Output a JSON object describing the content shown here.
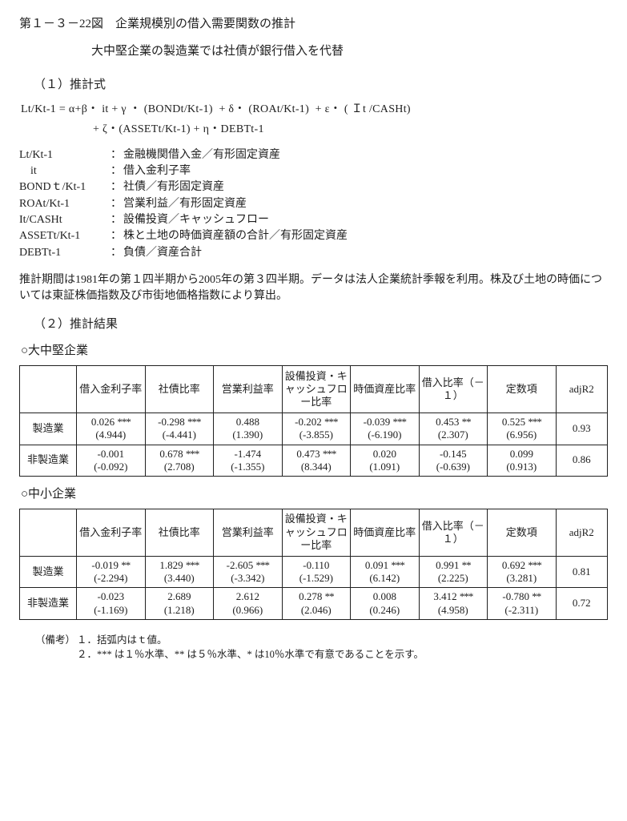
{
  "title": "第１－３－22図　企業規模別の借入需要関数の推計",
  "subtitle": "大中堅企業の製造業では社債が銀行借入を代替",
  "section1": {
    "heading": "（１）推計式",
    "eq_line1": "Lt/Kt-1 = α+β・ it + γ ・ (BONDt/Kt-1)  + δ・ (ROAt/Kt-1)  + ε・ ( Ｉt /CASHt)",
    "eq_line2": "+ ζ・(ASSETt/Kt-1) + η・DEBTt-1",
    "defs": [
      {
        "term": "Lt/Kt-1",
        "desc": "金融機関借入金／有形固定資産"
      },
      {
        "term": "    it",
        "desc": "借入金利子率"
      },
      {
        "term": "BONDｔ/Kt-1",
        "desc": "社債／有形固定資産"
      },
      {
        "term": "ROAt/Kt-1",
        "desc": "営業利益／有形固定資産"
      },
      {
        "term": "It/CASHt",
        "desc": "設備投資／キャッシュフロー"
      },
      {
        "term": "ASSETt/Kt-1",
        "desc": "株と土地の時価資産額の合計／有形固定資産"
      },
      {
        "term": "DEBTt-1",
        "desc": "負債／資産合計"
      }
    ],
    "period_note": "推計期間は1981年の第１四半期から2005年の第３四半期。データは法人企業統計季報を利用。株及び土地の時価については東証株価指数及び市街地価格指数により算出。"
  },
  "section2": {
    "heading": "（２）推計結果",
    "columns": [
      "",
      "借入金利子率",
      "社債比率",
      "営業利益率",
      "設備投資・キャッシュフロー比率",
      "時価資産比率",
      "借入比率（－１）",
      "定数項",
      "adjR2"
    ],
    "groups": [
      {
        "label": "○大中堅企業",
        "rows": [
          {
            "label": "製造業",
            "cells": [
              {
                "v": "0.026",
                "sig": "***",
                "t": "(4.944)"
              },
              {
                "v": "-0.298",
                "sig": "***",
                "t": "(-4.441)"
              },
              {
                "v": "0.488",
                "sig": "",
                "t": "(1.390)"
              },
              {
                "v": "-0.202",
                "sig": "***",
                "t": "(-3.855)"
              },
              {
                "v": "-0.039",
                "sig": "***",
                "t": "(-6.190)"
              },
              {
                "v": "0.453",
                "sig": "**",
                "t": "(2.307)"
              },
              {
                "v": "0.525",
                "sig": "***",
                "t": "(6.956)"
              }
            ],
            "adjr2": "0.93"
          },
          {
            "label": "非製造業",
            "cells": [
              {
                "v": "-0.001",
                "sig": "",
                "t": "(-0.092)"
              },
              {
                "v": "0.678",
                "sig": "***",
                "t": "(2.708)"
              },
              {
                "v": "-1.474",
                "sig": "",
                "t": "(-1.355)"
              },
              {
                "v": "0.473",
                "sig": "***",
                "t": "(8.344)"
              },
              {
                "v": "0.020",
                "sig": "",
                "t": "(1.091)"
              },
              {
                "v": "-0.145",
                "sig": "",
                "t": "(-0.639)"
              },
              {
                "v": "0.099",
                "sig": "",
                "t": "(0.913)"
              }
            ],
            "adjr2": "0.86"
          }
        ]
      },
      {
        "label": "○中小企業",
        "rows": [
          {
            "label": "製造業",
            "cells": [
              {
                "v": "-0.019",
                "sig": "**",
                "t": "(-2.294)"
              },
              {
                "v": "1.829",
                "sig": "***",
                "t": "(3.440)"
              },
              {
                "v": "-2.605",
                "sig": "***",
                "t": "(-3.342)"
              },
              {
                "v": "-0.110",
                "sig": "",
                "t": "(-1.529)"
              },
              {
                "v": "0.091",
                "sig": "***",
                "t": "(6.142)"
              },
              {
                "v": "0.991",
                "sig": "**",
                "t": "(2.225)"
              },
              {
                "v": "0.692",
                "sig": "***",
                "t": "(3.281)"
              }
            ],
            "adjr2": "0.81"
          },
          {
            "label": "非製造業",
            "cells": [
              {
                "v": "-0.023",
                "sig": "",
                "t": "(-1.169)"
              },
              {
                "v": "2.689",
                "sig": "",
                "t": "(1.218)"
              },
              {
                "v": "2.612",
                "sig": "",
                "t": "(0.966)"
              },
              {
                "v": "0.278",
                "sig": "**",
                "t": "(2.046)"
              },
              {
                "v": "0.008",
                "sig": "",
                "t": "(0.246)"
              },
              {
                "v": "3.412",
                "sig": "***",
                "t": "(4.958)"
              },
              {
                "v": "-0.780",
                "sig": "**",
                "t": "(-2.311)"
              }
            ],
            "adjr2": "0.72"
          }
        ]
      }
    ]
  },
  "notes": {
    "lead": "（備考）",
    "lines": [
      "１．括弧内はｔ値。",
      "２．*** は１％水準、** は５％水準、* は10％水準で有意であることを示す。"
    ]
  }
}
